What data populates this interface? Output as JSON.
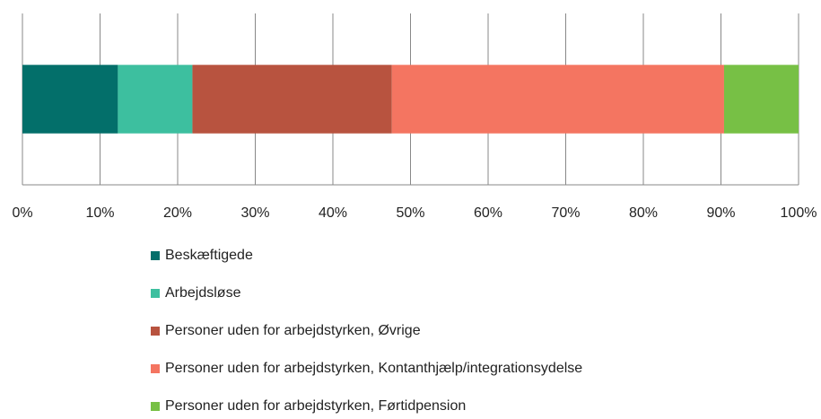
{
  "chart_data": {
    "type": "bar",
    "orientation": "horizontal",
    "stacked": true,
    "series": [
      {
        "name": "Beskæftigede",
        "color": "#036f6a",
        "values": [
          12.3
        ]
      },
      {
        "name": "Arbejdsløse",
        "color": "#3dbf9f",
        "values": [
          9.6
        ]
      },
      {
        "name": "Personer uden for arbejdstyrken, Øvrige",
        "color": "#b8533f",
        "values": [
          25.7
        ]
      },
      {
        "name": "Personer uden for arbejdstyrken, Kontanthjælp/integrationsydelse",
        "color": "#f47561",
        "values": [
          42.8
        ]
      },
      {
        "name": "Personer uden for arbejdstyrken, Førtidpension",
        "color": "#77c045",
        "values": [
          9.6
        ]
      }
    ],
    "xlim": [
      0,
      100
    ],
    "xticks": [
      {
        "value": 0,
        "label": "0%"
      },
      {
        "value": 10,
        "label": "10%"
      },
      {
        "value": 20,
        "label": "20%"
      },
      {
        "value": 30,
        "label": "30%"
      },
      {
        "value": 40,
        "label": "40%"
      },
      {
        "value": 50,
        "label": "50%"
      },
      {
        "value": 60,
        "label": "60%"
      },
      {
        "value": 70,
        "label": "70%"
      },
      {
        "value": 80,
        "label": "80%"
      },
      {
        "value": 90,
        "label": "90%"
      },
      {
        "value": 100,
        "label": "100%"
      }
    ],
    "grid": true,
    "legend": "bottom"
  }
}
